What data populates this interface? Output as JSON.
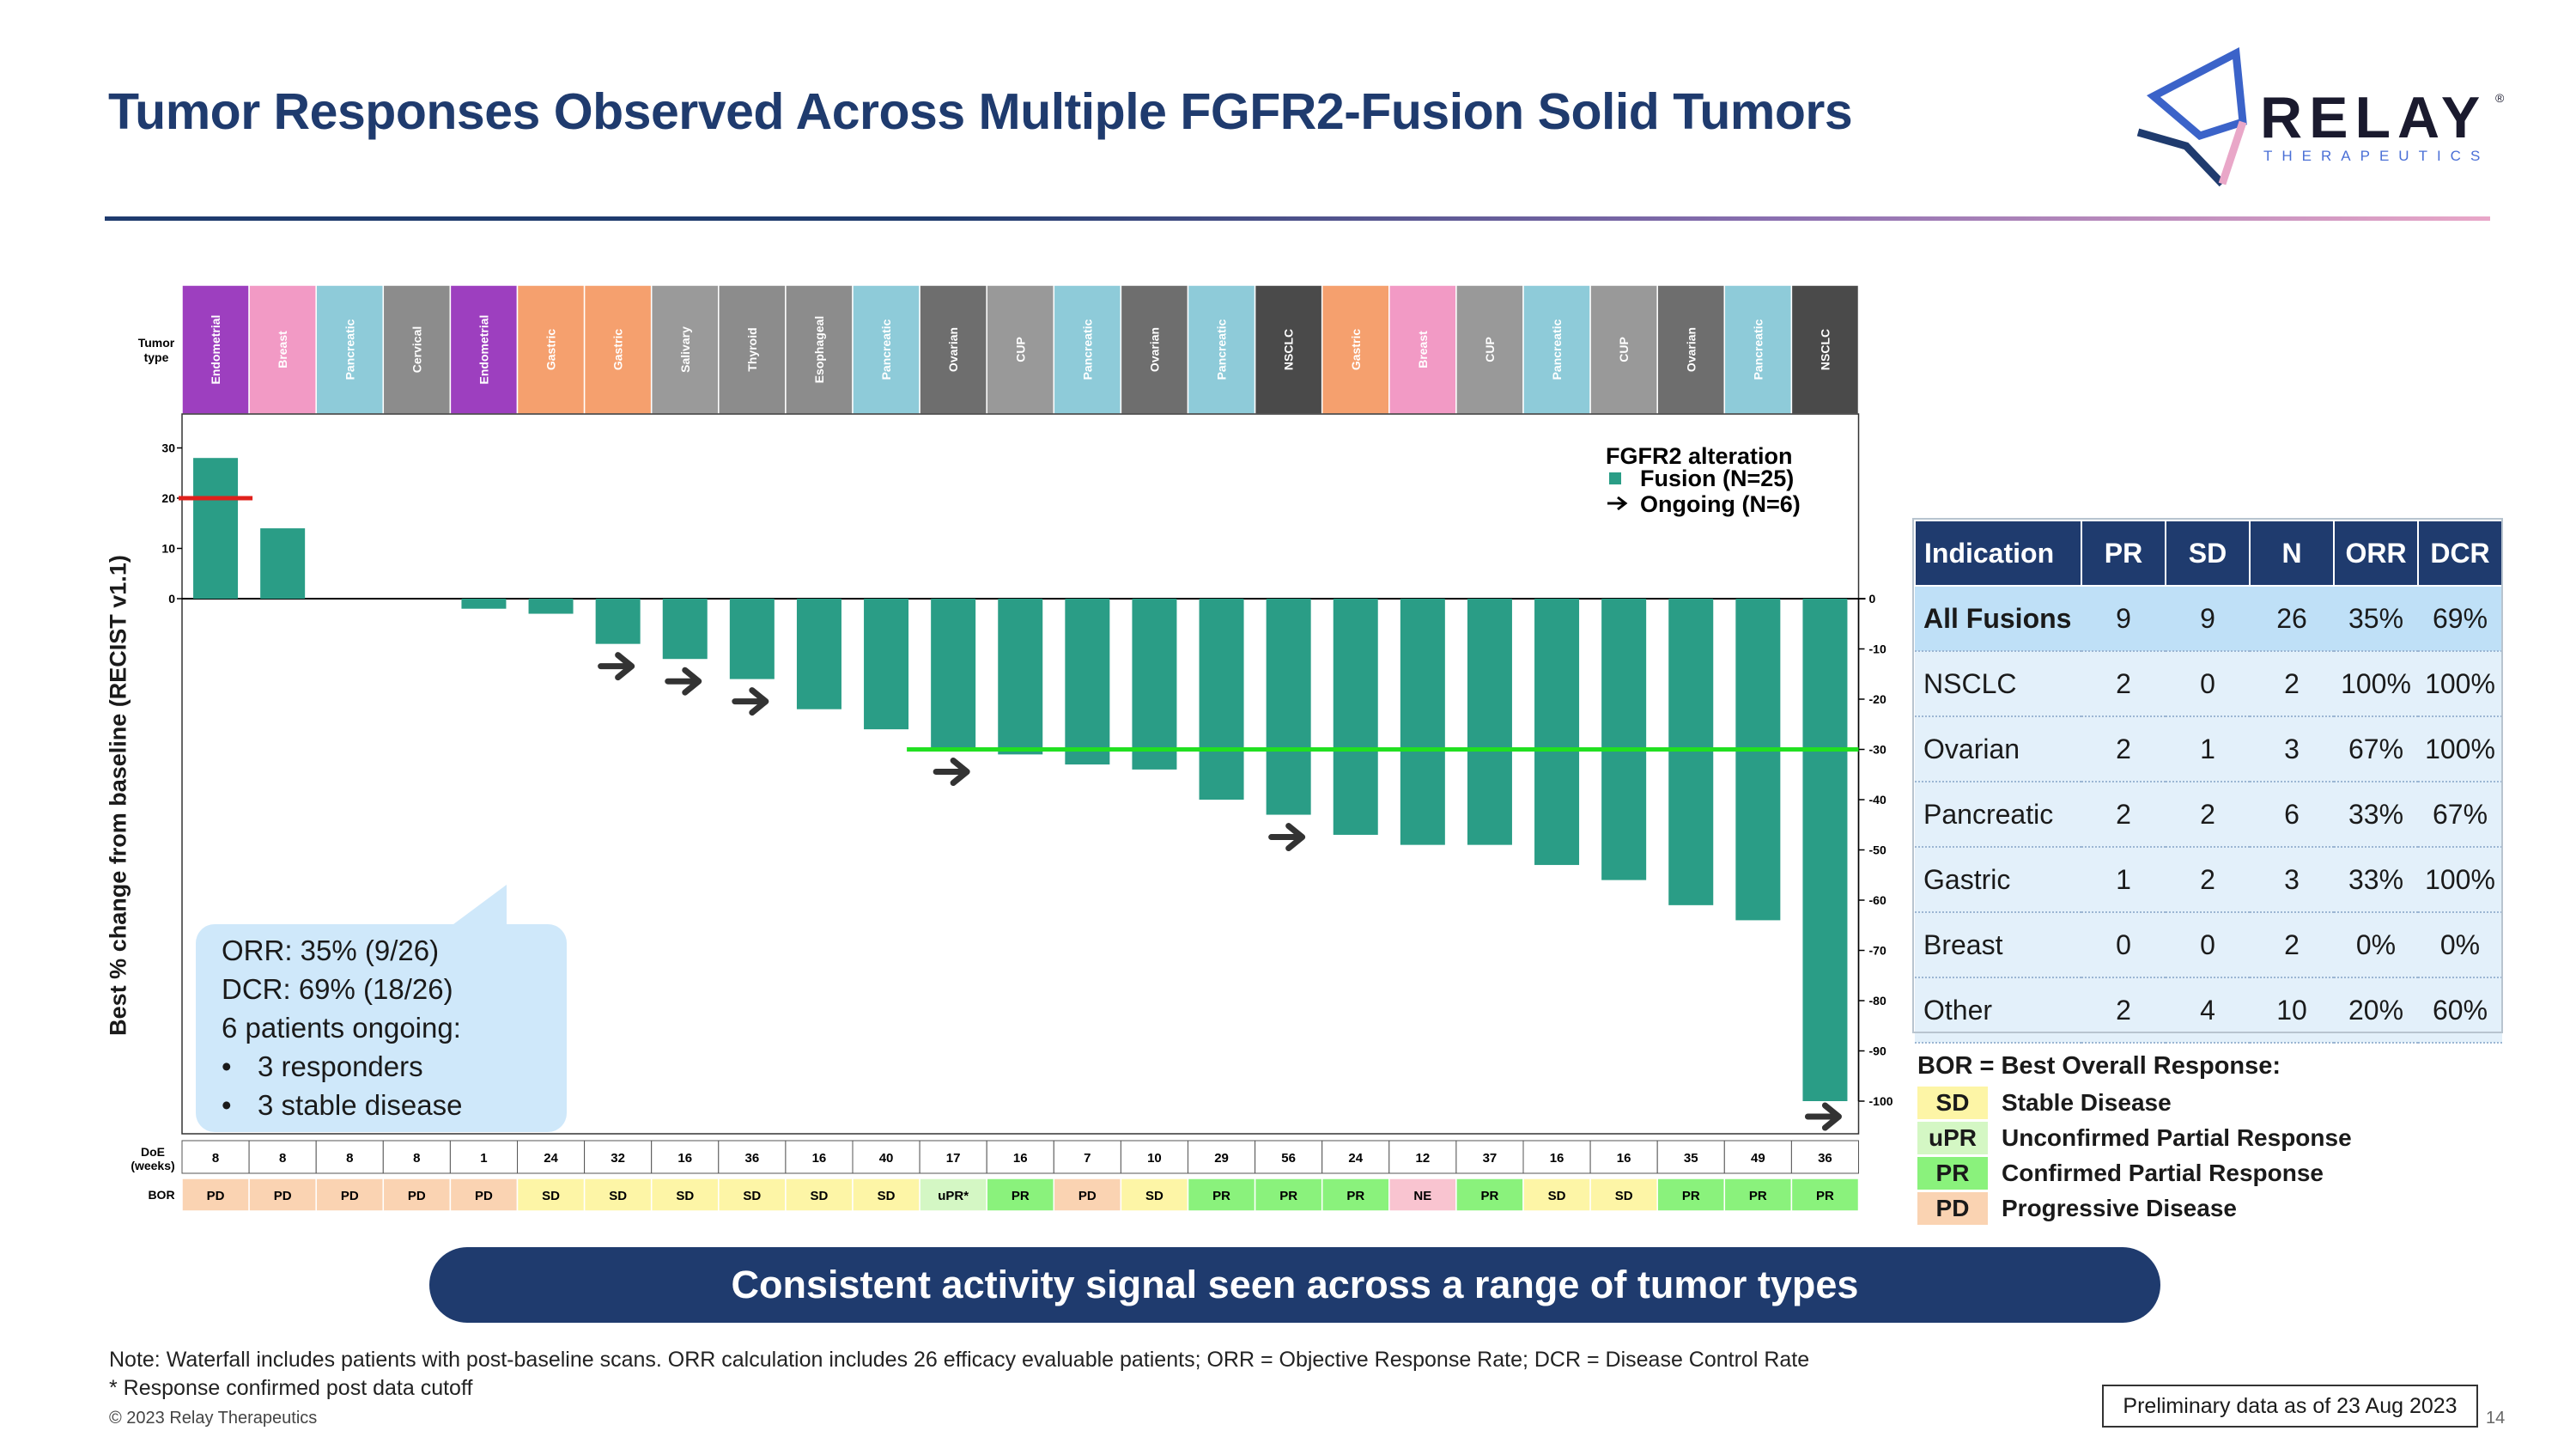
{
  "page": {
    "title": "Tumor Responses Observed Across Multiple FGFR2-Fusion Solid Tumors",
    "logo_word": "RELAY",
    "logo_sub": "THERAPEUTICS",
    "logo_mark": "®",
    "banner": "Consistent activity signal seen across a range of tumor types",
    "note_line1": "Note: Waterfall includes patients with post-baseline scans. ORR calculation includes 26 efficacy evaluable patients; ORR = Objective Response Rate; DCR = Disease Control Rate",
    "note_line2": "* Response confirmed post data cutoff",
    "copyright": "© 2023 Relay Therapeutics",
    "prelim": "Preliminary data as of 23 Aug 2023",
    "page_number": "14"
  },
  "callout": {
    "line1": "ORR: 35% (9/26)",
    "line2": "DCR: 69% (18/26)",
    "line3": "6 patients ongoing:",
    "bullet1": "3 responders",
    "bullet2": "3 stable disease"
  },
  "chart_data": {
    "type": "bar",
    "ylabel": "Best % change from baseline (RECIST v1.1)",
    "ylim": [
      -100,
      30
    ],
    "left_ticks": [
      "30",
      "20",
      "10",
      "0"
    ],
    "right_ticks": [
      "0",
      "-10",
      "-20",
      "-30",
      "-40",
      "-50",
      "-60",
      "-70",
      "-80",
      "-90",
      "-100"
    ],
    "row_labels": {
      "tumor_type": "Tumor type",
      "doe": "DoE (weeks)",
      "bor": "BOR"
    },
    "legend": {
      "title": "FGFR2 alteration",
      "fusion": "Fusion (N=25)",
      "ongoing": "Ongoing (N=6)"
    },
    "reference_lines": [
      {
        "value": 20,
        "color": "#e0201b"
      },
      {
        "value": -30,
        "color": "#21e021"
      }
    ],
    "bar_color": "#2a9d86",
    "categories": [
      "Endometrial",
      "Breast",
      "Pancreatic",
      "Cervical",
      "Endometrial",
      "Gastric",
      "Gastric",
      "Salivary",
      "Thyroid",
      "Esophageal",
      "Pancreatic",
      "Ovarian",
      "CUP",
      "Pancreatic",
      "Ovarian",
      "Pancreatic",
      "NSCLC",
      "Gastric",
      "Breast",
      "CUP",
      "Pancreatic",
      "CUP",
      "Ovarian",
      "Pancreatic",
      "NSCLC"
    ],
    "values": [
      28,
      14,
      0,
      0,
      -2,
      -3,
      -9,
      -12,
      -16,
      -22,
      -26,
      -30,
      -31,
      -33,
      -34,
      -40,
      -43,
      -47,
      -49,
      -49,
      -53,
      -56,
      -61,
      -64,
      -100
    ],
    "ongoing": [
      false,
      false,
      false,
      false,
      false,
      false,
      true,
      true,
      true,
      false,
      false,
      true,
      false,
      false,
      false,
      false,
      true,
      false,
      false,
      false,
      false,
      false,
      false,
      false,
      true
    ],
    "doe_weeks": [
      "8",
      "8",
      "8",
      "8",
      "1",
      "24",
      "32",
      "16",
      "36",
      "16",
      "40",
      "17",
      "16",
      "7",
      "10",
      "29",
      "56",
      "24",
      "12",
      "37",
      "16",
      "16",
      "35",
      "49",
      "36"
    ],
    "bor": [
      "PD",
      "PD",
      "PD",
      "PD",
      "PD",
      "SD",
      "SD",
      "SD",
      "SD",
      "SD",
      "SD",
      "uPR*",
      "PR",
      "PD",
      "SD",
      "PR",
      "PR",
      "PR",
      "NE",
      "PR",
      "SD",
      "SD",
      "PR",
      "PR",
      "PR"
    ],
    "tumor_colors": {
      "Endometrial": "#9d3fbf",
      "Breast": "#f29ac5",
      "Pancreatic": "#8ecbd9",
      "Cervical": "#8c8c8c",
      "Gastric": "#f5a06e",
      "Salivary": "#9a9a9a",
      "Thyroid": "#8c8c8c",
      "Esophageal": "#8c8c8c",
      "Ovarian": "#6e6e6e",
      "CUP": "#999999",
      "NSCLC": "#4a4a4a"
    },
    "bor_colors": {
      "PD": "#fad3b2",
      "SD": "#fdf5a6",
      "uPR*": "#d4f7c4",
      "PR": "#8af27c",
      "NE": "#f9c4d0"
    }
  },
  "indication_table": {
    "headers": [
      "Indication",
      "PR",
      "SD",
      "N",
      "ORR",
      "DCR"
    ],
    "rows": [
      [
        "All Fusions",
        "9",
        "9",
        "26",
        "35%",
        "69%"
      ],
      [
        "NSCLC",
        "2",
        "0",
        "2",
        "100%",
        "100%"
      ],
      [
        "Ovarian",
        "2",
        "1",
        "3",
        "67%",
        "100%"
      ],
      [
        "Pancreatic",
        "2",
        "2",
        "6",
        "33%",
        "67%"
      ],
      [
        "Gastric",
        "1",
        "2",
        "3",
        "33%",
        "100%"
      ],
      [
        "Breast",
        "0",
        "0",
        "2",
        "0%",
        "0%"
      ],
      [
        "Other",
        "2",
        "4",
        "10",
        "20%",
        "60%"
      ]
    ]
  },
  "bor_legend": {
    "title": "BOR = Best Overall Response:",
    "items": [
      {
        "code": "SD",
        "desc": "Stable Disease",
        "color": "#fdf5a6"
      },
      {
        "code": "uPR",
        "desc": "Unconfirmed Partial Response",
        "color": "#d4f7c4"
      },
      {
        "code": "PR",
        "desc": "Confirmed Partial Response",
        "color": "#8af27c"
      },
      {
        "code": "PD",
        "desc": "Progressive Disease",
        "color": "#fad3b2"
      }
    ]
  }
}
